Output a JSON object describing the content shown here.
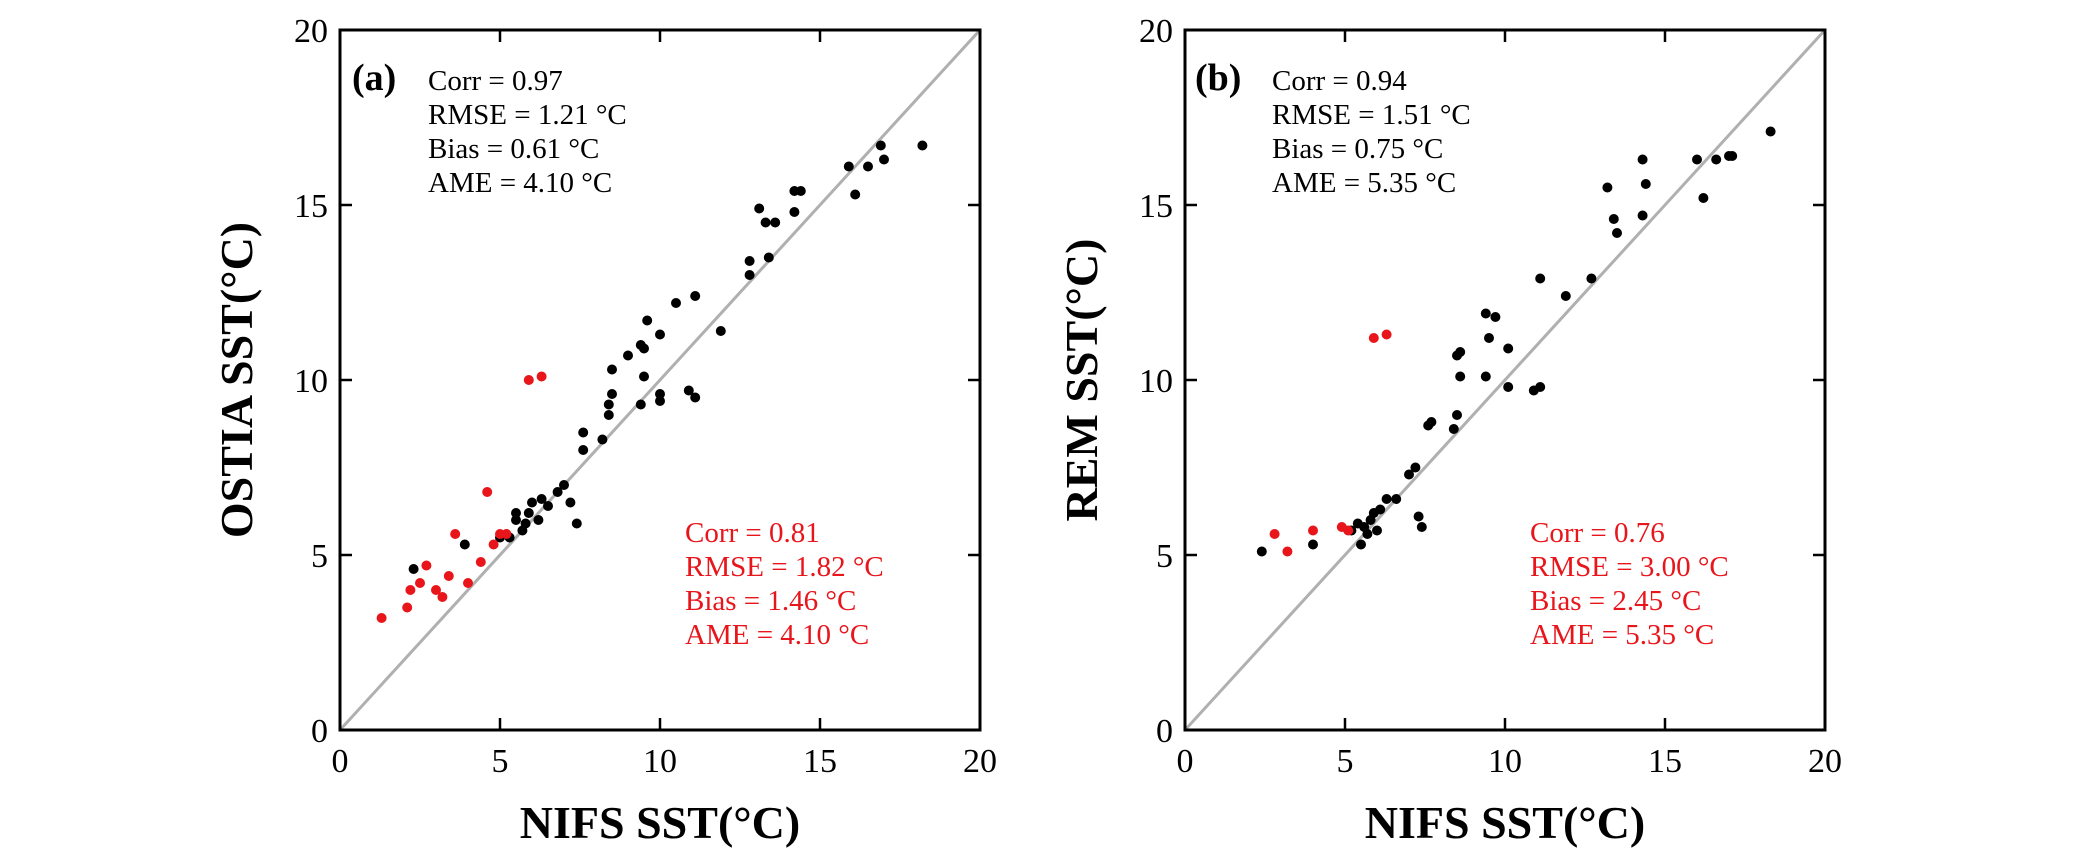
{
  "colors": {
    "black_series": "#000000",
    "red_series": "#e8151b",
    "reference_line": "#b0b0b0",
    "axes": "#000000"
  },
  "chart_data": [
    {
      "type": "scatter",
      "panel_label": "(a)",
      "xlabel": "NIFS SST(°C)",
      "ylabel": "OSTIA SST(°C)",
      "xlim": [
        0,
        20
      ],
      "ylim": [
        0,
        20
      ],
      "xticks": [
        "0",
        "5",
        "10",
        "15",
        "20"
      ],
      "yticks": [
        "0",
        "5",
        "10",
        "15",
        "20"
      ],
      "grid": false,
      "reference_line": "1:1",
      "stats": [
        {
          "color": "black",
          "lines": [
            "Corr =  0.97",
            "RMSE =  1.21 °C",
            "Bias = 0.61 °C",
            "AME =  4.10 °C"
          ]
        },
        {
          "color": "red",
          "lines": [
            "Corr =  0.81",
            "RMSE =  1.82 °C",
            "Bias =  1.46 °C",
            "AME =  4.10 °C"
          ]
        }
      ],
      "series": [
        {
          "color": "black",
          "points": [
            [
              2.3,
              4.6
            ],
            [
              3.9,
              5.3
            ],
            [
              5.0,
              5.5
            ],
            [
              5.3,
              5.5
            ],
            [
              5.5,
              6.0
            ],
            [
              5.5,
              6.2
            ],
            [
              5.7,
              5.7
            ],
            [
              5.8,
              5.9
            ],
            [
              5.9,
              6.2
            ],
            [
              6.0,
              6.5
            ],
            [
              6.2,
              6.0
            ],
            [
              6.3,
              6.6
            ],
            [
              6.5,
              6.4
            ],
            [
              6.8,
              6.8
            ],
            [
              7.0,
              7.0
            ],
            [
              7.2,
              6.5
            ],
            [
              7.4,
              5.9
            ],
            [
              7.6,
              8.0
            ],
            [
              7.6,
              8.5
            ],
            [
              8.2,
              8.3
            ],
            [
              8.4,
              9.0
            ],
            [
              8.4,
              9.3
            ],
            [
              8.5,
              9.6
            ],
            [
              8.5,
              10.3
            ],
            [
              9.0,
              10.7
            ],
            [
              9.4,
              9.3
            ],
            [
              9.4,
              11.0
            ],
            [
              9.5,
              10.1
            ],
            [
              9.5,
              10.9
            ],
            [
              9.6,
              11.7
            ],
            [
              10.0,
              9.4
            ],
            [
              10.0,
              9.6
            ],
            [
              10.0,
              11.3
            ],
            [
              10.5,
              12.2
            ],
            [
              10.9,
              9.7
            ],
            [
              11.1,
              9.5
            ],
            [
              11.1,
              12.4
            ],
            [
              11.9,
              11.4
            ],
            [
              12.8,
              13.0
            ],
            [
              12.8,
              13.4
            ],
            [
              13.1,
              14.9
            ],
            [
              13.3,
              14.5
            ],
            [
              13.4,
              13.5
            ],
            [
              13.6,
              14.5
            ],
            [
              14.2,
              14.8
            ],
            [
              14.2,
              15.4
            ],
            [
              14.4,
              15.4
            ],
            [
              15.9,
              16.1
            ],
            [
              16.1,
              15.3
            ],
            [
              16.5,
              16.1
            ],
            [
              16.9,
              16.7
            ],
            [
              17.0,
              16.3
            ],
            [
              18.2,
              16.7
            ]
          ]
        },
        {
          "color": "red",
          "points": [
            [
              1.3,
              3.2
            ],
            [
              2.1,
              3.5
            ],
            [
              2.2,
              4.0
            ],
            [
              2.5,
              4.2
            ],
            [
              2.7,
              4.7
            ],
            [
              3.0,
              4.0
            ],
            [
              3.2,
              3.8
            ],
            [
              3.4,
              4.4
            ],
            [
              3.6,
              5.6
            ],
            [
              4.0,
              4.2
            ],
            [
              4.4,
              4.8
            ],
            [
              4.6,
              6.8
            ],
            [
              4.8,
              5.3
            ],
            [
              5.0,
              5.6
            ],
            [
              5.2,
              5.6
            ],
            [
              5.9,
              10.0
            ],
            [
              6.3,
              10.1
            ]
          ]
        }
      ]
    },
    {
      "type": "scatter",
      "panel_label": "(b)",
      "xlabel": "NIFS SST(°C)",
      "ylabel": "REM SST(°C)",
      "xlim": [
        0,
        20
      ],
      "ylim": [
        0,
        20
      ],
      "xticks": [
        "0",
        "5",
        "10",
        "15",
        "20"
      ],
      "yticks": [
        "0",
        "5",
        "10",
        "15",
        "20"
      ],
      "grid": false,
      "reference_line": "1:1",
      "stats": [
        {
          "color": "black",
          "lines": [
            "Corr =  0.94",
            "RMSE =  1.51 °C",
            "Bias = 0.75 °C",
            "AME =  5.35 °C"
          ]
        },
        {
          "color": "red",
          "lines": [
            "Corr =  0.76",
            "RMSE =  3.00 °C",
            "Bias =  2.45 °C",
            "AME =  5.35 °C"
          ]
        }
      ],
      "series": [
        {
          "color": "black",
          "points": [
            [
              2.4,
              5.1
            ],
            [
              4.0,
              5.3
            ],
            [
              5.2,
              5.7
            ],
            [
              5.4,
              5.9
            ],
            [
              5.5,
              5.3
            ],
            [
              5.6,
              5.8
            ],
            [
              5.7,
              5.6
            ],
            [
              5.8,
              6.0
            ],
            [
              5.9,
              6.2
            ],
            [
              6.0,
              5.7
            ],
            [
              6.1,
              6.3
            ],
            [
              6.3,
              6.6
            ],
            [
              6.6,
              6.6
            ],
            [
              7.0,
              7.3
            ],
            [
              7.2,
              7.5
            ],
            [
              7.3,
              6.1
            ],
            [
              7.4,
              5.8
            ],
            [
              7.6,
              8.7
            ],
            [
              7.7,
              8.8
            ],
            [
              8.4,
              8.6
            ],
            [
              8.5,
              9.0
            ],
            [
              8.5,
              10.7
            ],
            [
              8.6,
              10.8
            ],
            [
              8.6,
              10.1
            ],
            [
              9.4,
              10.1
            ],
            [
              9.4,
              11.9
            ],
            [
              9.5,
              11.2
            ],
            [
              9.7,
              11.8
            ],
            [
              10.1,
              9.8
            ],
            [
              10.1,
              10.9
            ],
            [
              10.9,
              9.7
            ],
            [
              11.1,
              9.8
            ],
            [
              11.1,
              12.9
            ],
            [
              11.9,
              12.4
            ],
            [
              12.7,
              12.9
            ],
            [
              13.2,
              15.5
            ],
            [
              13.4,
              14.6
            ],
            [
              13.5,
              14.2
            ],
            [
              14.3,
              14.7
            ],
            [
              14.3,
              16.3
            ],
            [
              14.4,
              15.6
            ],
            [
              16.0,
              16.3
            ],
            [
              16.2,
              15.2
            ],
            [
              16.6,
              16.3
            ],
            [
              17.0,
              16.4
            ],
            [
              17.1,
              16.4
            ],
            [
              18.3,
              17.1
            ]
          ]
        },
        {
          "color": "red",
          "points": [
            [
              2.8,
              5.6
            ],
            [
              3.2,
              5.1
            ],
            [
              4.0,
              5.7
            ],
            [
              4.9,
              5.8
            ],
            [
              5.1,
              5.7
            ],
            [
              5.9,
              11.2
            ],
            [
              6.3,
              11.3
            ]
          ]
        }
      ]
    }
  ]
}
